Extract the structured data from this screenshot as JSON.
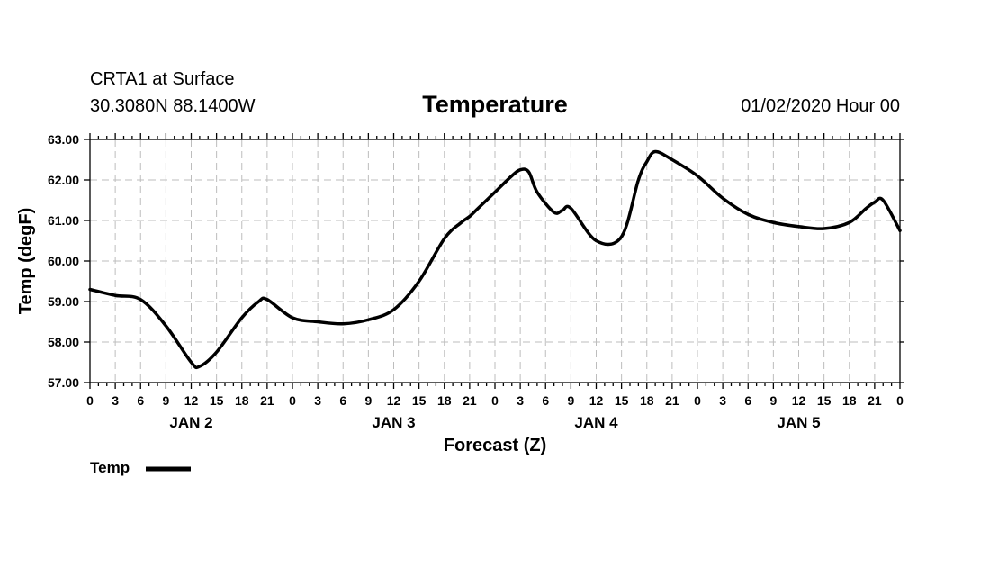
{
  "header": {
    "station": "CRTA1 at Surface",
    "location": "30.3080N 88.1400W",
    "title": "Temperature",
    "init_time": "01/02/2020 Hour 00"
  },
  "chart_data": {
    "type": "line",
    "title": "Temperature",
    "xlabel": "Forecast (Z)",
    "ylabel": "Temp (degF)",
    "ylim": [
      57.0,
      63.0
    ],
    "yticks": [
      "57.00",
      "58.00",
      "59.00",
      "60.00",
      "61.00",
      "62.00",
      "63.00"
    ],
    "xlim_hours": [
      0,
      96
    ],
    "xtick_step_hours": 1,
    "xtick_labels": [
      "0",
      "3",
      "6",
      "9",
      "12",
      "15",
      "18",
      "21",
      "0",
      "3",
      "6",
      "9",
      "12",
      "15",
      "18",
      "21",
      "0",
      "3",
      "6",
      "9",
      "12",
      "15",
      "18",
      "21",
      "0",
      "3",
      "6",
      "9",
      "12",
      "15",
      "18",
      "21",
      "0"
    ],
    "day_labels": [
      {
        "label": "JAN 2",
        "hour": 12
      },
      {
        "label": "JAN 3",
        "hour": 36
      },
      {
        "label": "JAN 4",
        "hour": 60
      },
      {
        "label": "JAN 5",
        "hour": 84
      }
    ],
    "grid": true,
    "legend_position": "bottom-left",
    "series": [
      {
        "name": "Temp",
        "color": "#000000",
        "x": [
          0,
          3,
          6,
          9,
          12,
          13,
          15,
          18,
          20,
          21,
          24,
          27,
          30,
          33,
          36,
          39,
          42,
          44,
          45,
          46,
          48,
          50,
          51,
          52,
          53,
          55,
          56,
          57,
          60,
          63,
          65,
          66,
          67,
          69,
          72,
          75,
          78,
          81,
          84,
          87,
          90,
          92,
          93,
          94,
          96
        ],
        "y": [
          59.3,
          59.15,
          59.05,
          58.4,
          57.5,
          57.4,
          57.75,
          58.6,
          59.0,
          59.05,
          58.6,
          58.5,
          58.45,
          58.55,
          58.8,
          59.5,
          60.55,
          60.95,
          61.1,
          61.3,
          61.7,
          62.1,
          62.25,
          62.2,
          61.7,
          61.2,
          61.25,
          61.3,
          60.5,
          60.6,
          62.0,
          62.45,
          62.7,
          62.5,
          62.1,
          61.55,
          61.15,
          60.95,
          60.85,
          60.8,
          60.95,
          61.3,
          61.45,
          61.5,
          60.75
        ]
      }
    ]
  },
  "legend": {
    "label": "Temp"
  }
}
